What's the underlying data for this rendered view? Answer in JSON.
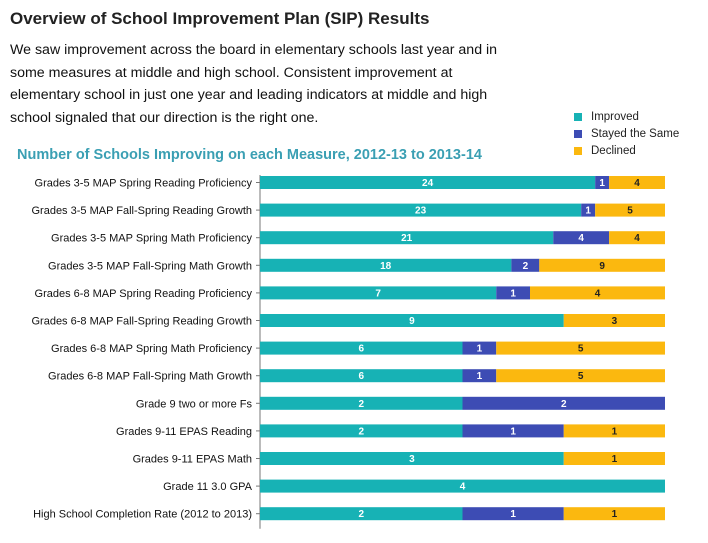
{
  "header": {
    "title": "Overview of School Improvement Plan (SIP) Results",
    "intro": "We saw improvement across the board in elementary schools last year and in some measures at middle and high school. Consistent improvement at elementary school in just one year and leading indicators at middle and high school signaled that our direction is the right one."
  },
  "legend": {
    "items": [
      {
        "label": "Improved",
        "color": "#17b2b5"
      },
      {
        "label": "Stayed the Same",
        "color": "#3d4cb4"
      },
      {
        "label": "Declined",
        "color": "#fbb80f"
      }
    ]
  },
  "chart_data": {
    "type": "bar",
    "orientation": "horizontal",
    "stacked": "percent",
    "title": "Number of Schools Improving on each Measure, 2012-13 to 2013-14",
    "categories": [
      "Grades 3-5 MAP Spring Reading Proficiency",
      "Grades 3-5 MAP Fall-Spring Reading Growth",
      "Grades 3-5 MAP Spring Math Proficiency",
      "Grades 3-5 MAP Fall-Spring Math Growth",
      "Grades 6-8 MAP Spring Reading Proficiency",
      "Grades 6-8 MAP Fall-Spring Reading Growth",
      "Grades 6-8 MAP Spring Math Proficiency",
      "Grades 6-8 MAP Fall-Spring Math Growth",
      "Grade 9 two or more Fs",
      "Grades 9-11 EPAS Reading",
      "Grades 9-11 EPAS Math",
      "Grade 11 3.0 GPA",
      "High School Completion Rate (2012 to 2013)"
    ],
    "series": [
      {
        "name": "Improved",
        "color": "#17b2b5",
        "values": [
          24,
          23,
          21,
          18,
          7,
          9,
          6,
          6,
          2,
          2,
          3,
          4,
          2
        ]
      },
      {
        "name": "Stayed the Same",
        "color": "#3d4cb4",
        "values": [
          1,
          1,
          4,
          2,
          1,
          0,
          1,
          1,
          2,
          1,
          0,
          0,
          1
        ]
      },
      {
        "name": "Declined",
        "color": "#fbb80f",
        "values": [
          4,
          5,
          4,
          9,
          4,
          3,
          5,
          5,
          0,
          1,
          1,
          0,
          1
        ]
      }
    ],
    "legend_position": "top-right",
    "grid": false
  }
}
